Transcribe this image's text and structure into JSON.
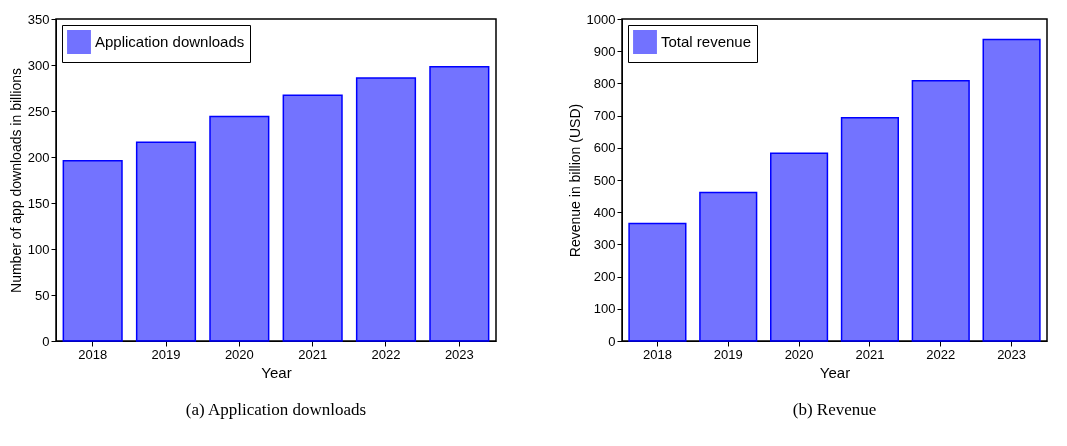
{
  "chart_data": [
    {
      "type": "bar",
      "xlabel": "Year",
      "ylabel": "Number of app downloads in billions",
      "categories": [
        "2018",
        "2019",
        "2020",
        "2021",
        "2022",
        "2023"
      ],
      "series": [
        {
          "name": "Application downloads",
          "color": "#0000ff",
          "values": [
            196,
            216,
            244,
            267,
            286,
            298
          ]
        }
      ],
      "ylim": [
        0,
        350
      ],
      "yticks": [
        0,
        50,
        100,
        150,
        200,
        250,
        300,
        350
      ],
      "grid": false,
      "legend": "top left",
      "annotations": [
        "(a) Application downloads"
      ]
    },
    {
      "type": "bar",
      "xlabel": "Year",
      "ylabel": "Revenue in billion (USD)",
      "categories": [
        "2018",
        "2019",
        "2020",
        "2021",
        "2022",
        "2023"
      ],
      "series": [
        {
          "name": "Total revenue",
          "color": "#0000ff",
          "values": [
            365,
            461,
            583,
            693,
            808,
            936
          ]
        }
      ],
      "ylim": [
        0,
        1000
      ],
      "yticks": [
        0,
        100,
        200,
        300,
        400,
        500,
        600,
        700,
        800,
        900,
        1000
      ],
      "grid": false,
      "legend": "top left",
      "annotations": [
        "(b) Revenue"
      ]
    }
  ]
}
